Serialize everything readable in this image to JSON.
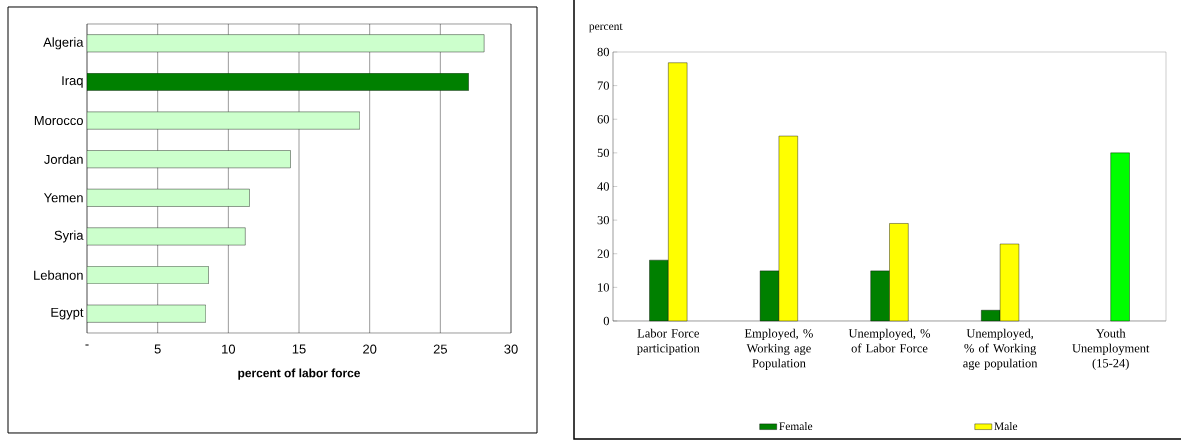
{
  "chart_data": [
    {
      "type": "bar",
      "orientation": "horizontal",
      "xlabel": "percent of labor force",
      "categories": [
        "Algeria",
        "Iraq",
        "Morocco",
        "Jordan",
        "Yemen",
        "Syria",
        "Lebanon",
        "Egypt"
      ],
      "values": [
        28.1,
        27.0,
        19.3,
        14.4,
        11.5,
        11.2,
        8.6,
        8.4
      ],
      "colors": [
        "#ccffcc",
        "#008000",
        "#ccffcc",
        "#ccffcc",
        "#ccffcc",
        "#ccffcc",
        "#ccffcc",
        "#ccffcc"
      ],
      "xlim": [
        0,
        30
      ],
      "xticks": [
        {
          "value": 0,
          "label": "-"
        },
        5,
        10,
        15,
        20,
        25,
        30
      ],
      "grid": "x"
    },
    {
      "type": "bar",
      "ylabel": "percent",
      "categories": [
        "Labor Force participation",
        "Employed, % Working age Population",
        "Unemployed, % of Labor Force",
        "Unemployed, % of Working age population",
        "Youth Unemployment (15-24)"
      ],
      "series": [
        {
          "name": "Female",
          "color": "#008000",
          "values": [
            18.1,
            14.9,
            14.9,
            3.2,
            null
          ]
        },
        {
          "name": "Male",
          "color": "#ffff00",
          "colors": [
            "#ffff00",
            "#ffff00",
            "#ffff00",
            "#ffff00",
            "#00ff00"
          ],
          "values": [
            76.8,
            55.0,
            29.0,
            22.9,
            50.0
          ]
        }
      ],
      "ylim": [
        0,
        80
      ],
      "yticks": [
        0,
        10,
        20,
        30,
        40,
        50,
        60,
        70,
        80
      ],
      "legend": "bottom"
    }
  ]
}
